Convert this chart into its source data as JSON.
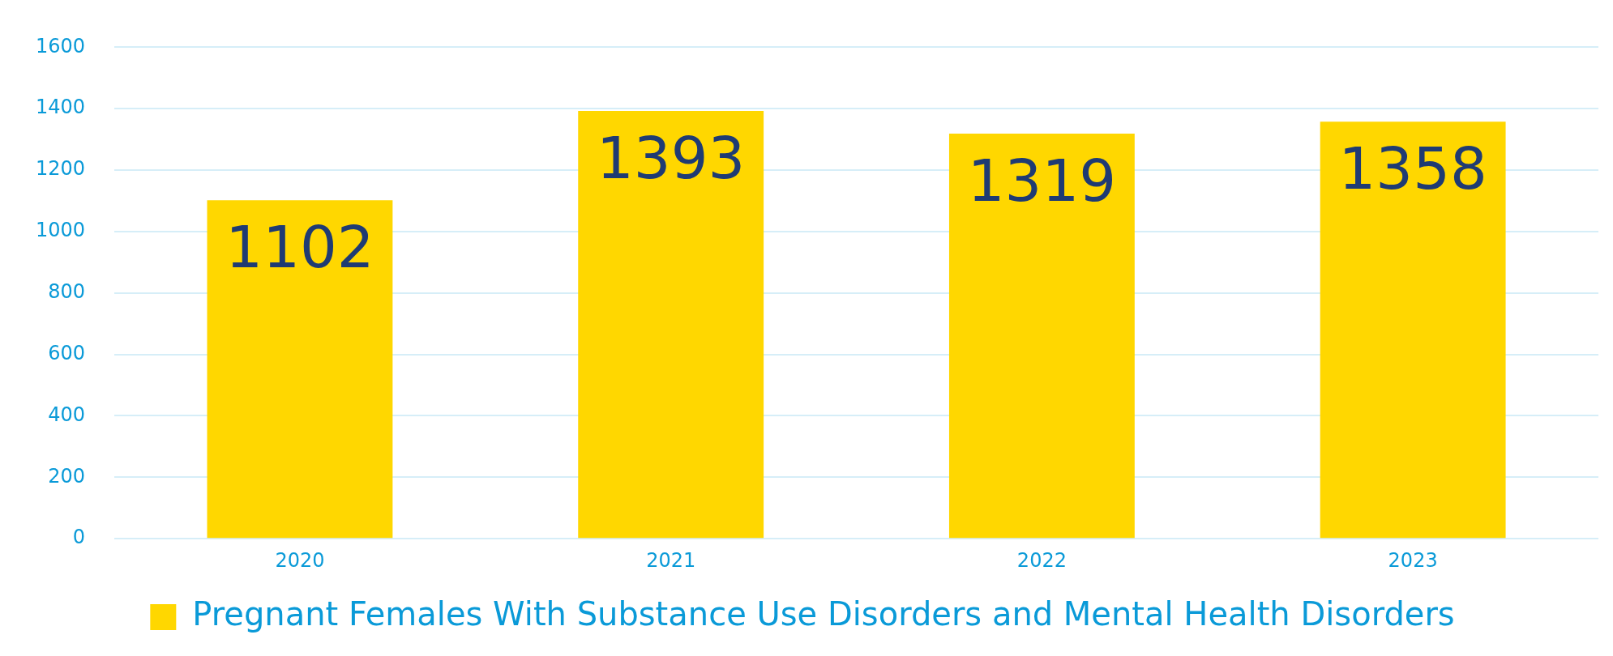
{
  "chart_data": {
    "type": "bar",
    "categories": [
      "2020",
      "2021",
      "2022",
      "2023"
    ],
    "series": [
      {
        "name": "Pregnant Females With Substance Use Disorders and Mental Health Disorders",
        "color": "#ffd700",
        "values": [
          1102,
          1393,
          1319,
          1358
        ]
      }
    ],
    "ylim": [
      0,
      1600
    ],
    "yticks": [
      0,
      200,
      400,
      600,
      800,
      1000,
      1200,
      1400,
      1600
    ],
    "grid": "y",
    "legend": "bottom",
    "data_labels": true
  }
}
